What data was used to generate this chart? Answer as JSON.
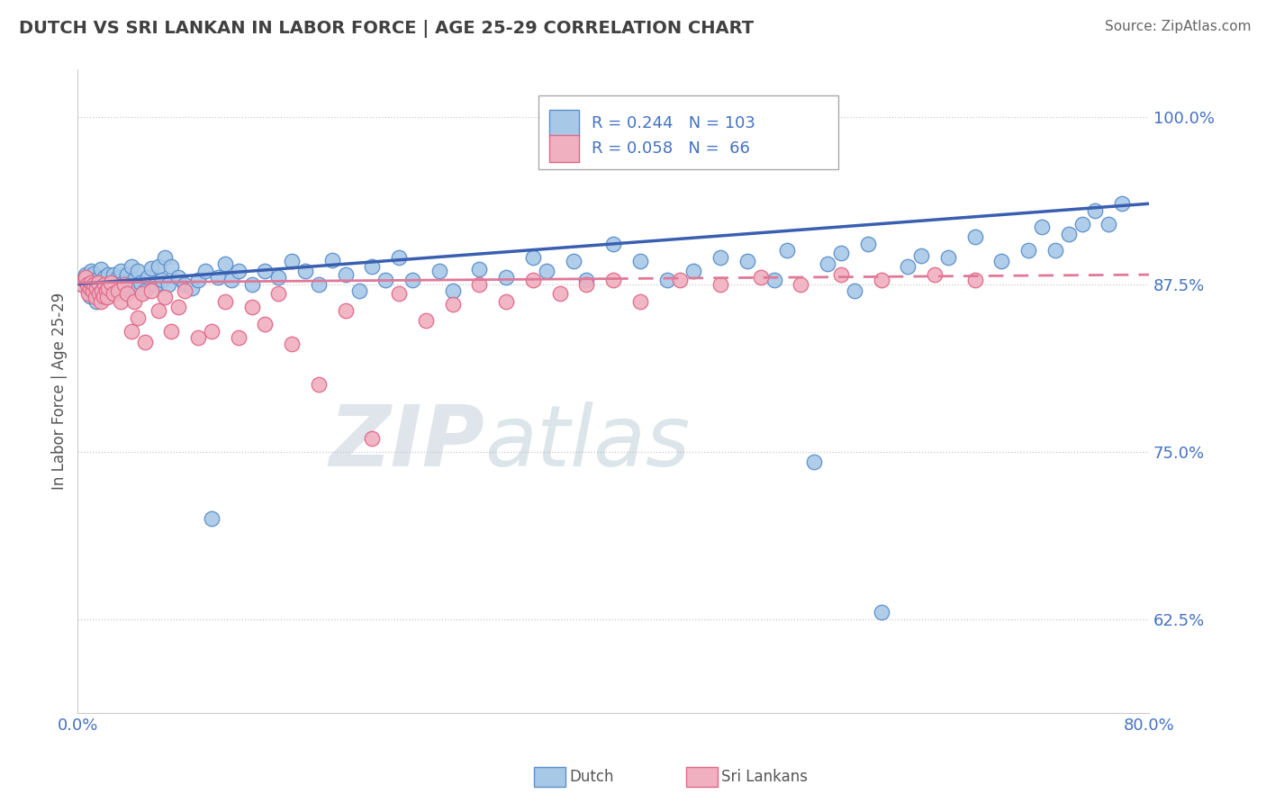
{
  "title": "DUTCH VS SRI LANKAN IN LABOR FORCE | AGE 25-29 CORRELATION CHART",
  "source": "Source: ZipAtlas.com",
  "ylabel": "In Labor Force | Age 25-29",
  "xlim": [
    0.0,
    0.8
  ],
  "ylim": [
    0.555,
    1.035
  ],
  "yticks": [
    0.625,
    0.75,
    0.875,
    1.0
  ],
  "ytick_labels": [
    "62.5%",
    "75.0%",
    "87.5%",
    "100.0%"
  ],
  "xticks": [
    0.0,
    0.8
  ],
  "xtick_labels": [
    "0.0%",
    "80.0%"
  ],
  "dutch_color": "#a8c8e8",
  "dutch_edge_color": "#5b90c8",
  "sri_lankan_color": "#f0b0c0",
  "sri_lankan_edge_color": "#e06888",
  "trend_dutch_color": "#3a5fb0",
  "trend_sri_color": "#e07898",
  "dutch_R": 0.244,
  "dutch_N": 103,
  "sri_R": 0.058,
  "sri_N": 66,
  "watermark_zip": "ZIP",
  "watermark_atlas": "atlas",
  "background_color": "#ffffff",
  "grid_color": "#c8c8c8",
  "title_color": "#404040",
  "axis_label_color": "#4472c4",
  "dutch_x": [
    0.003,
    0.005,
    0.006,
    0.007,
    0.008,
    0.009,
    0.01,
    0.01,
    0.011,
    0.012,
    0.013,
    0.014,
    0.015,
    0.016,
    0.017,
    0.018,
    0.019,
    0.02,
    0.021,
    0.022,
    0.023,
    0.024,
    0.025,
    0.027,
    0.028,
    0.03,
    0.032,
    0.034,
    0.035,
    0.037,
    0.038,
    0.04,
    0.042,
    0.043,
    0.045,
    0.047,
    0.05,
    0.052,
    0.055,
    0.058,
    0.06,
    0.063,
    0.065,
    0.068,
    0.07,
    0.075,
    0.08,
    0.085,
    0.09,
    0.095,
    0.1,
    0.105,
    0.11,
    0.115,
    0.12,
    0.13,
    0.14,
    0.15,
    0.16,
    0.17,
    0.18,
    0.19,
    0.2,
    0.21,
    0.22,
    0.23,
    0.24,
    0.25,
    0.27,
    0.28,
    0.3,
    0.32,
    0.34,
    0.35,
    0.37,
    0.38,
    0.4,
    0.42,
    0.44,
    0.46,
    0.48,
    0.5,
    0.52,
    0.53,
    0.55,
    0.56,
    0.57,
    0.58,
    0.59,
    0.6,
    0.62,
    0.63,
    0.65,
    0.67,
    0.69,
    0.71,
    0.72,
    0.73,
    0.74,
    0.75,
    0.76,
    0.77,
    0.78
  ],
  "dutch_y": [
    0.875,
    0.88,
    0.882,
    0.878,
    0.87,
    0.866,
    0.872,
    0.885,
    0.878,
    0.883,
    0.87,
    0.862,
    0.875,
    0.88,
    0.886,
    0.875,
    0.865,
    0.88,
    0.875,
    0.87,
    0.882,
    0.875,
    0.87,
    0.882,
    0.875,
    0.88,
    0.885,
    0.876,
    0.87,
    0.882,
    0.875,
    0.888,
    0.878,
    0.872,
    0.885,
    0.876,
    0.87,
    0.88,
    0.887,
    0.875,
    0.888,
    0.878,
    0.895,
    0.875,
    0.888,
    0.88,
    0.875,
    0.872,
    0.878,
    0.885,
    0.7,
    0.88,
    0.89,
    0.878,
    0.885,
    0.875,
    0.885,
    0.88,
    0.892,
    0.885,
    0.875,
    0.893,
    0.882,
    0.87,
    0.888,
    0.878,
    0.895,
    0.878,
    0.885,
    0.87,
    0.886,
    0.88,
    0.895,
    0.885,
    0.892,
    0.878,
    0.905,
    0.892,
    0.878,
    0.885,
    0.895,
    0.892,
    0.878,
    0.9,
    0.742,
    0.89,
    0.898,
    0.87,
    0.905,
    0.63,
    0.888,
    0.896,
    0.895,
    0.91,
    0.892,
    0.9,
    0.918,
    0.9,
    0.912,
    0.92,
    0.93,
    0.92,
    0.935
  ],
  "sri_x": [
    0.003,
    0.005,
    0.006,
    0.007,
    0.008,
    0.009,
    0.01,
    0.011,
    0.012,
    0.013,
    0.014,
    0.015,
    0.016,
    0.017,
    0.018,
    0.019,
    0.02,
    0.021,
    0.022,
    0.023,
    0.025,
    0.027,
    0.03,
    0.032,
    0.035,
    0.037,
    0.04,
    0.042,
    0.045,
    0.048,
    0.05,
    0.055,
    0.06,
    0.065,
    0.07,
    0.075,
    0.08,
    0.09,
    0.1,
    0.11,
    0.12,
    0.13,
    0.14,
    0.15,
    0.16,
    0.18,
    0.2,
    0.22,
    0.24,
    0.26,
    0.28,
    0.3,
    0.32,
    0.34,
    0.36,
    0.38,
    0.4,
    0.42,
    0.45,
    0.48,
    0.51,
    0.54,
    0.57,
    0.6,
    0.64,
    0.67
  ],
  "sri_y": [
    0.875,
    0.878,
    0.88,
    0.875,
    0.868,
    0.872,
    0.876,
    0.87,
    0.875,
    0.865,
    0.872,
    0.876,
    0.868,
    0.862,
    0.87,
    0.866,
    0.875,
    0.87,
    0.865,
    0.872,
    0.876,
    0.868,
    0.87,
    0.862,
    0.875,
    0.868,
    0.84,
    0.862,
    0.85,
    0.868,
    0.832,
    0.87,
    0.855,
    0.865,
    0.84,
    0.858,
    0.87,
    0.835,
    0.84,
    0.862,
    0.835,
    0.858,
    0.845,
    0.868,
    0.83,
    0.8,
    0.855,
    0.76,
    0.868,
    0.848,
    0.86,
    0.875,
    0.862,
    0.878,
    0.868,
    0.875,
    0.878,
    0.862,
    0.878,
    0.875,
    0.88,
    0.875,
    0.882,
    0.878,
    0.882,
    0.878
  ]
}
